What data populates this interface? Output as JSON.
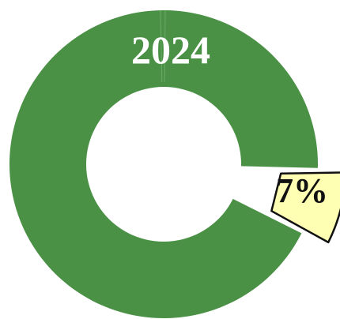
{
  "chart_data": {
    "type": "pie",
    "variant": "donut",
    "title": "2024",
    "highlight_label": "7%",
    "slices": [
      {
        "value": 93,
        "color": "#4a9146",
        "exploded": false
      },
      {
        "value": 7,
        "color": "#ffffb3",
        "exploded": true
      }
    ],
    "colors": {
      "ring": "#4a9146",
      "highlight_fill": "#ffffb3",
      "highlight_stroke": "#111111",
      "title_text": "#ffffff",
      "background": "#ffffff"
    }
  }
}
